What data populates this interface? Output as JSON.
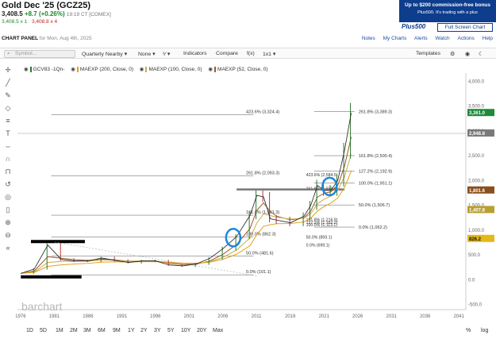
{
  "header": {
    "title": "Gold Dec '25 (GCZ25)",
    "last": "3,408.5",
    "change": "+8.7 (+0.26%)",
    "time": "19:19 CT [COMEX]",
    "bid": "3,408.5 x 1",
    "ask": "3,408.8 x 4"
  },
  "promo": {
    "line1": "Up to $200 commission-free bonus",
    "line2": "Plus500. It's trading with a plus",
    "brand": "Plus500",
    "fullscreen": "Full Screen Chart"
  },
  "panel": {
    "title": "CHART PANEL",
    "date": "for Mon, Aug 4th, 2025",
    "links": [
      "Notes",
      "My Charts",
      "Alerts",
      "Watch",
      "Actions",
      "Help"
    ]
  },
  "toolbar": {
    "symbol_placeholder": "Symbol...",
    "frequency": "Quarterly Nearby",
    "type": "None",
    "indicators": "Indicators",
    "compare": "Compare",
    "fx": "f(x)",
    "size": "1x1",
    "templates": "Templates"
  },
  "legend": [
    {
      "label": "GCV83 -1Qn-",
      "color": "#2b7a2b"
    },
    {
      "label": "MAEXP (200, Close, 0)",
      "color": "#e3a01c"
    },
    {
      "label": "MAEXP (100, Close, 0)",
      "color": "#c9ad4d"
    },
    {
      "label": "MAEXP (52, Close, 0)",
      "color": "#9b5a2c"
    }
  ],
  "axis": {
    "y_ticks": [
      "4,000.0",
      "3,500.0",
      "3,000.0",
      "2,500.0",
      "2,000.0",
      "1,500.0",
      "1,000.0",
      "500.0",
      "0.0",
      "-500.0"
    ],
    "x_ticks": [
      "1976",
      "1981",
      "1986",
      "1991",
      "1996",
      "2001",
      "2006",
      "2011",
      "2016",
      "2021",
      "2026",
      "2031",
      "2036",
      "2041"
    ]
  },
  "price_tags": [
    {
      "value": "3,361.0",
      "color": "#1e8a3a"
    },
    {
      "value": "2,948.8",
      "color": "#7a7a7a"
    },
    {
      "value": "1,801.6",
      "color": "#8a4f1e"
    },
    {
      "value": "1,407.8",
      "color": "#b8a030"
    },
    {
      "value": "826.2",
      "color": "#e3b818"
    }
  ],
  "fib_labels": {
    "outer": [
      "423.6% (3,324.4)",
      "261.8% (2,093.3)",
      "161.8% (1,301.3)",
      "100.0% (862.3)",
      "50.0% (481.6)",
      "0.0% (101.1)"
    ],
    "right": [
      "261.8% (3,389.3)",
      "161.8% (2,500.4)",
      "127.2% (2,192.9)",
      "100.0% (1,951.1)",
      "50.0% (1,506.7)",
      "0.0% (1,062.2)"
    ],
    "inner": [
      "423.6% (2,584.5)",
      "261.8% (1,836.9)",
      "161.8% (1,216.9)",
      "127.2% (1,162.2)",
      "100.0% (1,113.1)",
      "50.0% (859.1)",
      "0.0% (699.1)"
    ]
  },
  "chart_data": {
    "type": "line",
    "title": "Gold Dec '25 (GCZ25)",
    "x": [
      1976,
      1978,
      1980,
      1982,
      1984,
      1986,
      1988,
      1990,
      1992,
      1994,
      1996,
      1998,
      2000,
      2002,
      2004,
      2006,
      2008,
      2010,
      2011,
      2012,
      2013,
      2014,
      2016,
      2018,
      2019,
      2020,
      2021,
      2022,
      2023,
      2024,
      2025
    ],
    "series": [
      {
        "name": "GCV83 -1Qn-",
        "values": [
          130,
          220,
          700,
          410,
          380,
          380,
          440,
          390,
          350,
          380,
          380,
          300,
          280,
          320,
          430,
          630,
          870,
          1300,
          1700,
          1670,
          1230,
          1200,
          1150,
          1280,
          1500,
          1900,
          1800,
          1800,
          2000,
          2600,
          3361
        ]
      }
    ],
    "ylim": [
      -600,
      4100
    ],
    "xlim": [
      1975.5,
      2042
    ],
    "grid": false
  },
  "range_bar": [
    "1D",
    "5D",
    "1M",
    "2M",
    "3M",
    "6M",
    "9M",
    "1Y",
    "2Y",
    "3Y",
    "5Y",
    "10Y",
    "20Y",
    "Max",
    "%",
    "log"
  ],
  "watermark": "barchart"
}
